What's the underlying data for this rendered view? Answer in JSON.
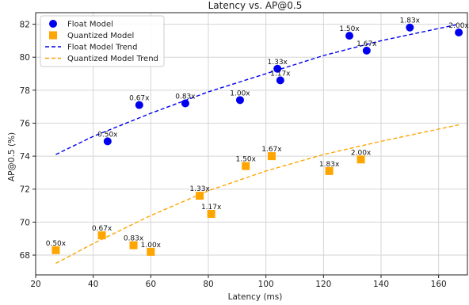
{
  "chart_data": {
    "type": "scatter",
    "title": "Latency vs. AP@0.5",
    "xlabel": "Latency (ms)",
    "ylabel": "AP@0.5 (%)",
    "xlim": [
      20,
      170
    ],
    "ylim": [
      66.8,
      82.7
    ],
    "xticks": [
      20,
      40,
      60,
      80,
      100,
      120,
      140,
      160
    ],
    "yticks": [
      68,
      70,
      72,
      74,
      76,
      78,
      80,
      82
    ],
    "grid": true,
    "legend_position": "top-left",
    "series": [
      {
        "name": "Float Model",
        "marker": "circle",
        "color": "#0000ee",
        "x": [
          45,
          56,
          72,
          91,
          104,
          105,
          129,
          135,
          150,
          167
        ],
        "y": [
          74.9,
          77.1,
          77.2,
          77.4,
          79.3,
          78.6,
          81.3,
          80.4,
          81.8,
          81.5
        ],
        "labels": [
          "0.50x",
          "0.67x",
          "0.83x",
          "1.00x",
          "1.33x",
          "1.17x",
          "1.50x",
          "1.67x",
          "1.83x",
          "2.00x"
        ]
      },
      {
        "name": "Quantized Model",
        "marker": "square",
        "color": "#ffa500",
        "x": [
          27,
          43,
          54,
          60,
          77,
          81,
          93,
          102,
          122,
          133
        ],
        "y": [
          68.3,
          69.2,
          68.6,
          68.2,
          71.6,
          70.5,
          73.4,
          74.0,
          73.1,
          73.8
        ],
        "labels": [
          "0.50x",
          "0.67x",
          "0.83x",
          "1.00x",
          "1.33x",
          "1.17x",
          "1.50x",
          "1.67x",
          "1.83x",
          "2.00x"
        ]
      }
    ],
    "trends": [
      {
        "name": "Float Model Trend",
        "style": "dashed",
        "color": "#0000ee",
        "x": [
          27,
          40,
          60,
          80,
          100,
          120,
          140,
          167
        ],
        "y": [
          74.1,
          75.2,
          76.6,
          77.9,
          79.0,
          80.1,
          81.0,
          82.0
        ]
      },
      {
        "name": "Quantized Model Trend",
        "style": "dashed",
        "color": "#ffa500",
        "x": [
          27,
          40,
          60,
          80,
          100,
          120,
          140,
          167
        ],
        "y": [
          67.5,
          68.7,
          70.4,
          71.9,
          73.1,
          74.1,
          74.9,
          75.9
        ]
      }
    ]
  }
}
